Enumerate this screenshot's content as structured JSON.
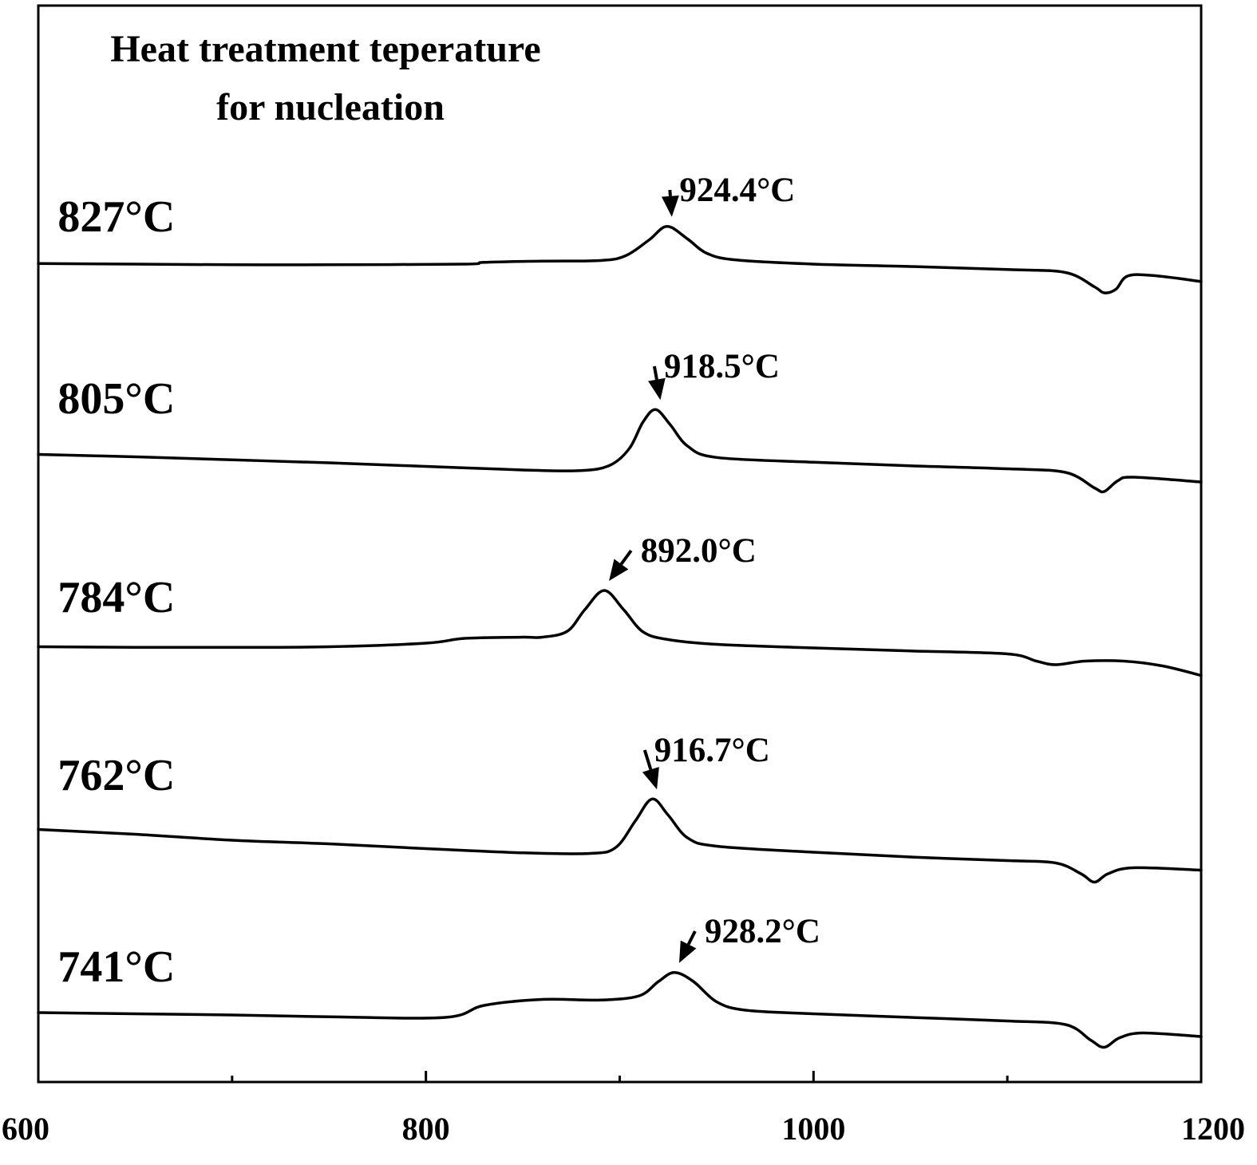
{
  "chart_data": {
    "type": "line",
    "title_lines": [
      "Heat treatment teperature",
      "for nucleation"
    ],
    "xlabel": "",
    "ylabel": "",
    "xlim": [
      600,
      1200
    ],
    "x_ticks_major": [
      600,
      800,
      1000,
      1200
    ],
    "x_tick_labels": [
      "600",
      "800",
      "1000",
      "1200"
    ],
    "x_ticks_minor": [
      700,
      900,
      1100
    ],
    "grid": false,
    "legend": "none",
    "y_ticks": "none",
    "series": [
      {
        "name": "827°C",
        "peak_label": "924.4°C",
        "peak_x": 924.4,
        "points": [
          [
            600,
            -0.15
          ],
          [
            650,
            -0.2
          ],
          [
            700,
            -0.25
          ],
          [
            750,
            -0.25
          ],
          [
            820,
            -0.2
          ],
          [
            830,
            -0.05
          ],
          [
            860,
            0.05
          ],
          [
            890,
            0.1
          ],
          [
            903,
            0.5
          ],
          [
            915,
            1.8
          ],
          [
            924.4,
            2.95
          ],
          [
            935,
            1.9
          ],
          [
            945,
            0.7
          ],
          [
            960,
            0.15
          ],
          [
            1000,
            -0.2
          ],
          [
            1050,
            -0.4
          ],
          [
            1100,
            -0.65
          ],
          [
            1130,
            -0.9
          ],
          [
            1145,
            -2.1
          ],
          [
            1150,
            -2.6
          ],
          [
            1156,
            -2.3
          ],
          [
            1162,
            -1.2
          ],
          [
            1175,
            -1.15
          ],
          [
            1200,
            -1.65
          ]
        ]
      },
      {
        "name": "805°C",
        "peak_label": "918.5°C",
        "peak_x": 918.5,
        "points": [
          [
            600,
            -0.9
          ],
          [
            650,
            -1.1
          ],
          [
            700,
            -1.35
          ],
          [
            750,
            -1.6
          ],
          [
            800,
            -1.9
          ],
          [
            850,
            -2.2
          ],
          [
            880,
            -2.25
          ],
          [
            895,
            -1.8
          ],
          [
            905,
            -0.4
          ],
          [
            912,
            1.8
          ],
          [
            918.5,
            2.85
          ],
          [
            926,
            1.6
          ],
          [
            935,
            -0.2
          ],
          [
            950,
            -1.15
          ],
          [
            1000,
            -1.55
          ],
          [
            1050,
            -1.85
          ],
          [
            1100,
            -2.1
          ],
          [
            1130,
            -2.4
          ],
          [
            1145,
            -3.7
          ],
          [
            1150,
            -4.0
          ],
          [
            1157,
            -3.1
          ],
          [
            1165,
            -2.8
          ],
          [
            1200,
            -3.2
          ]
        ]
      },
      {
        "name": "784°C",
        "peak_label": "892.0°C",
        "peak_x": 892.0,
        "points": [
          [
            600,
            -0.9
          ],
          [
            650,
            -0.95
          ],
          [
            700,
            -0.95
          ],
          [
            750,
            -0.9
          ],
          [
            800,
            -0.6
          ],
          [
            820,
            -0.2
          ],
          [
            850,
            -0.1
          ],
          [
            860,
            -0.1
          ],
          [
            873,
            0.4
          ],
          [
            882,
            2.2
          ],
          [
            892,
            3.8
          ],
          [
            902,
            2.2
          ],
          [
            912,
            0.35
          ],
          [
            925,
            -0.3
          ],
          [
            950,
            -0.7
          ],
          [
            1000,
            -1.0
          ],
          [
            1050,
            -1.25
          ],
          [
            1100,
            -1.5
          ],
          [
            1115,
            -2.1
          ],
          [
            1125,
            -2.4
          ],
          [
            1140,
            -2.1
          ],
          [
            1160,
            -2.1
          ],
          [
            1180,
            -2.5
          ],
          [
            1200,
            -3.3
          ]
        ]
      },
      {
        "name": "762°C",
        "peak_label": "916.7°C",
        "peak_x": 916.7,
        "points": [
          [
            600,
            -0.9
          ],
          [
            650,
            -1.3
          ],
          [
            700,
            -1.8
          ],
          [
            750,
            -2.1
          ],
          [
            800,
            -2.5
          ],
          [
            850,
            -2.85
          ],
          [
            885,
            -2.9
          ],
          [
            898,
            -2.4
          ],
          [
            908,
            -0.2
          ],
          [
            916.7,
            1.65
          ],
          [
            925,
            0.3
          ],
          [
            935,
            -1.6
          ],
          [
            950,
            -2.3
          ],
          [
            1000,
            -2.8
          ],
          [
            1050,
            -3.2
          ],
          [
            1100,
            -3.5
          ],
          [
            1125,
            -3.7
          ],
          [
            1138,
            -4.6
          ],
          [
            1145,
            -5.3
          ],
          [
            1152,
            -4.6
          ],
          [
            1165,
            -4.1
          ],
          [
            1200,
            -4.3
          ]
        ]
      },
      {
        "name": "741°C",
        "peak_label": "928.2°C",
        "peak_x": 928.2,
        "points": [
          [
            600,
            -0.2
          ],
          [
            650,
            -0.3
          ],
          [
            700,
            -0.4
          ],
          [
            750,
            -0.55
          ],
          [
            810,
            -0.6
          ],
          [
            830,
            0.4
          ],
          [
            860,
            0.9
          ],
          [
            890,
            0.85
          ],
          [
            910,
            1.2
          ],
          [
            920,
            2.4
          ],
          [
            928.2,
            3.15
          ],
          [
            938,
            2.4
          ],
          [
            950,
            0.7
          ],
          [
            965,
            0.0
          ],
          [
            1000,
            -0.3
          ],
          [
            1050,
            -0.6
          ],
          [
            1100,
            -0.9
          ],
          [
            1130,
            -1.2
          ],
          [
            1143,
            -2.5
          ],
          [
            1150,
            -3.1
          ],
          [
            1158,
            -2.3
          ],
          [
            1170,
            -1.9
          ],
          [
            1200,
            -2.2
          ]
        ]
      }
    ],
    "series_label_x": [
      608,
      608,
      608,
      608,
      608
    ],
    "peak_label_position_text": [
      930,
      922,
      910,
      917,
      943
    ]
  }
}
